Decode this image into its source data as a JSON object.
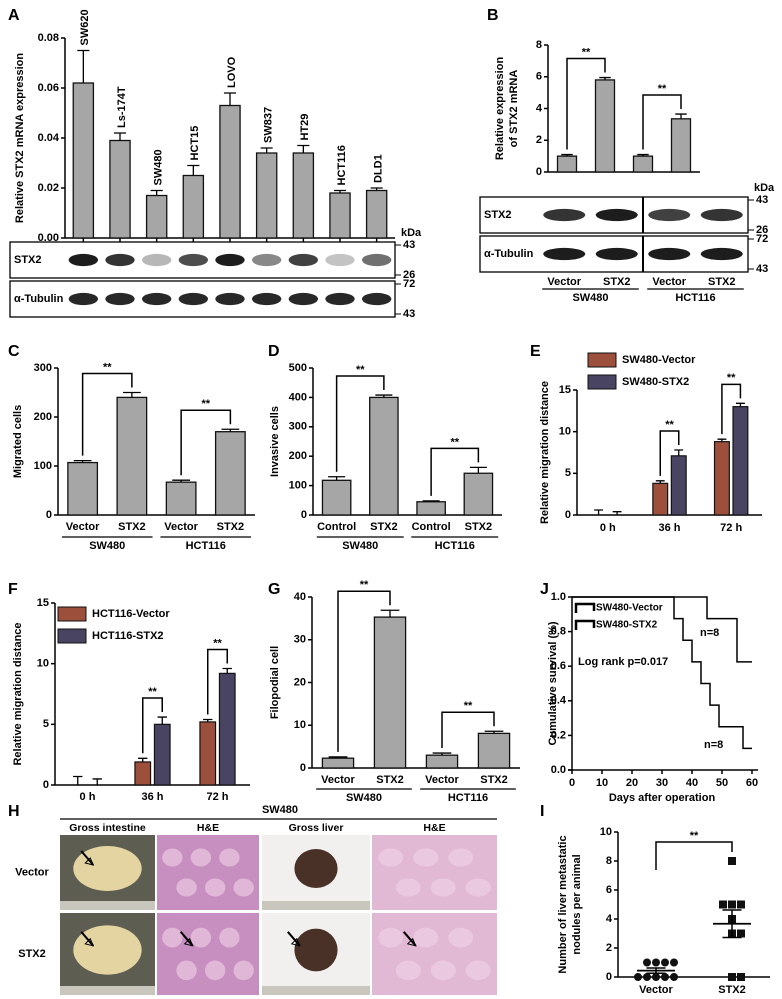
{
  "chart_data": [
    {
      "type": "bar",
      "panel": "A",
      "ylabel": "Relative STX2 mRNA expression",
      "rotated_labels": true,
      "color": "#a6a6a6",
      "categories": [
        "SW620",
        "Ls-174T",
        "SW480",
        "HCT15",
        "LOVO",
        "SW837",
        "HT29",
        "HCT116",
        "DLD1"
      ],
      "values": [
        0.062,
        0.039,
        0.017,
        0.025,
        0.053,
        0.034,
        0.034,
        0.018,
        0.019
      ],
      "errors": [
        0.013,
        0.003,
        0.002,
        0.004,
        0.005,
        0.002,
        0.003,
        0.001,
        0.001
      ],
      "ylim": [
        0,
        0.08
      ],
      "yticks": [
        {
          "value": 0,
          "label": "0.00"
        },
        0.02,
        0.04,
        0.06,
        0.08
      ],
      "blot": {
        "unit": "kDa",
        "rows": [
          {
            "label": "STX2",
            "markers": [
              43,
              26
            ]
          },
          {
            "label": "α-Tubulin",
            "markers": [
              72,
              43
            ]
          }
        ]
      }
    },
    {
      "type": "bar",
      "panel": "B",
      "ylabel": [
        "Relative expression",
        "of STX2 mRNA"
      ],
      "color": "#a6a6a6",
      "categories": [
        "Vector",
        "STX2",
        "Vector",
        "STX2"
      ],
      "groups": [
        "SW480",
        "HCT116"
      ],
      "values": [
        1,
        5.8,
        1,
        3.35
      ],
      "errors": [
        0.1,
        0.15,
        0.1,
        0.3
      ],
      "ylim": [
        0,
        8
      ],
      "yticks": [
        0,
        2,
        4,
        6,
        8
      ],
      "significance": [
        "**",
        "**"
      ],
      "blot": {
        "unit": "kDa",
        "rows": [
          {
            "label": "STX2",
            "markers": [
              43,
              26
            ]
          },
          {
            "label": "α-Tubulin",
            "markers": [
              72,
              43
            ]
          }
        ]
      }
    },
    {
      "type": "bar",
      "panel": "C",
      "ylabel": "Migrated cells",
      "color": "#a6a6a6",
      "categories": [
        "Vector",
        "STX2",
        "Vector",
        "STX2"
      ],
      "groups": [
        "SW480",
        "HCT116"
      ],
      "values": [
        107,
        240,
        67,
        170
      ],
      "errors": [
        4,
        10,
        4,
        5
      ],
      "ylim": [
        0,
        300
      ],
      "yticks": [
        0,
        100,
        200,
        300
      ],
      "significance": [
        "**",
        "**"
      ]
    },
    {
      "type": "bar",
      "panel": "D",
      "ylabel": "Invasive cells",
      "color": "#a6a6a6",
      "categories": [
        "Control",
        "STX2",
        "Control",
        "STX2"
      ],
      "groups": [
        "SW480",
        "HCT116"
      ],
      "values": [
        118,
        400,
        45,
        142
      ],
      "errors": [
        12,
        8,
        3,
        20
      ],
      "ylim": [
        0,
        500
      ],
      "yticks": [
        0,
        100,
        200,
        300,
        400,
        500
      ],
      "significance": [
        "**",
        "**"
      ]
    },
    {
      "type": "grouped_bar",
      "panel": "E",
      "ylabel": "Relative migration distance",
      "categories": [
        "0 h",
        "36 h",
        "72 h"
      ],
      "series": [
        {
          "name": "SW480-Vector",
          "color": "#9c4f3b",
          "values": [
            0,
            3.8,
            8.8
          ],
          "errors": [
            0.6,
            0.3,
            0.3
          ]
        },
        {
          "name": "SW480-STX2",
          "color": "#4a4463",
          "values": [
            0,
            7.1,
            13
          ],
          "errors": [
            0.4,
            0.7,
            0.4
          ]
        }
      ],
      "ylim": [
        0,
        15
      ],
      "yticks": [
        0,
        5,
        10,
        15
      ],
      "significance": [
        null,
        "**",
        "**"
      ]
    },
    {
      "type": "grouped_bar",
      "panel": "F",
      "ylabel": "Relative migration distance",
      "categories": [
        "0 h",
        "36 h",
        "72 h"
      ],
      "series": [
        {
          "name": "HCT116-Vector",
          "color": "#9c4f3b",
          "values": [
            0,
            1.9,
            5.2
          ],
          "errors": [
            0.7,
            0.3,
            0.2
          ]
        },
        {
          "name": "HCT116-STX2",
          "color": "#4a4463",
          "values": [
            0,
            5,
            9.2
          ],
          "errors": [
            0.5,
            0.6,
            0.4
          ]
        }
      ],
      "ylim": [
        0,
        15
      ],
      "yticks": [
        0,
        5,
        10,
        15
      ],
      "significance": [
        null,
        "**",
        "**"
      ]
    },
    {
      "type": "bar",
      "panel": "G",
      "ylabel": "Filopodial cell",
      "color": "#a6a6a6",
      "categories": [
        "Vector",
        "STX2",
        "Vector",
        "STX2"
      ],
      "groups": [
        "SW480",
        "HCT116"
      ],
      "values": [
        2.3,
        35.3,
        3,
        8.1
      ],
      "errors": [
        0.3,
        1.6,
        0.5,
        0.5
      ],
      "ylim": [
        0,
        40
      ],
      "yticks": [
        0,
        10,
        20,
        30,
        40
      ],
      "significance": [
        "**",
        "**"
      ]
    },
    {
      "type": "step",
      "panel": "J",
      "ylabel": "Cumulative survival (%)",
      "xlabel": "Days after operation",
      "series": [
        {
          "name": "SW480-Vector",
          "color": "#3b5ba9",
          "x": [
            0,
            45,
            55,
            60
          ],
          "values": [
            1,
            0.875,
            0.625,
            0.625
          ]
        },
        {
          "name": "SW480-STX2",
          "color": "#3aaa35",
          "x": [
            0,
            34,
            37,
            40,
            43,
            46,
            49,
            57,
            60
          ],
          "values": [
            1,
            0.875,
            0.75,
            0.625,
            0.5,
            0.375,
            0.25,
            0.125,
            0.125
          ]
        }
      ],
      "xlim": [
        0,
        60
      ],
      "xticks": [
        0,
        10,
        20,
        30,
        40,
        50,
        60
      ],
      "ylim": [
        0,
        1
      ],
      "yticks": [
        {
          "value": 0,
          "label": "0.0"
        },
        0.2,
        0.4,
        0.6,
        0.8,
        {
          "value": 1,
          "label": "1.0"
        }
      ],
      "annotations": [
        "n=8",
        "Log rank p=0.017",
        "n=8"
      ]
    },
    {
      "type": "dot",
      "panel": "I",
      "ylabel": [
        "Number of liver metastatic",
        "nodules per animal"
      ],
      "categories": [
        "Vector",
        "STX2"
      ],
      "markers": [
        "circle",
        "square"
      ],
      "points": [
        [
          0,
          0,
          0,
          0,
          0,
          1,
          1,
          1,
          1
        ],
        [
          0,
          0,
          3,
          3,
          4,
          5,
          5,
          5,
          8
        ]
      ],
      "means": [
        0.44,
        3.67
      ],
      "errors": [
        0.18,
        0.95
      ],
      "ylim": [
        0,
        10
      ],
      "yticks": [
        0,
        2,
        4,
        6,
        8,
        10
      ],
      "significance": [
        "**"
      ]
    }
  ],
  "figure_h": {
    "panel": "H",
    "title": "SW480",
    "columns": [
      "Gross intestine",
      "H&E",
      "Gross liver",
      "H&E"
    ],
    "rows": [
      "Vector",
      "STX2"
    ]
  }
}
